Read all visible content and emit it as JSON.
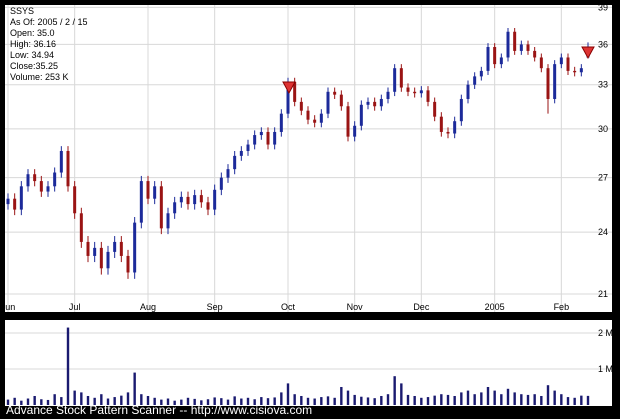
{
  "info": [
    "SSYS",
    "As Of: 2005 / 2 / 15",
    "Open: 35.0",
    "High: 36.16",
    "Low: 34.94",
    "Close:35.25",
    "Volume: 253 K"
  ],
  "footer": "Advance Stock Pattern Scanner -- http://www.cisiova.com",
  "chart_data": [
    {
      "type": "ohlc",
      "log_scale": true,
      "grid": true,
      "up_color": "#1c2a9a",
      "down_color": "#9a1414",
      "categories": [
        "Jun",
        null,
        null,
        null,
        null,
        null,
        null,
        null,
        null,
        null,
        "Jul",
        null,
        null,
        null,
        null,
        null,
        null,
        null,
        null,
        null,
        null,
        "Aug",
        null,
        null,
        null,
        null,
        null,
        null,
        null,
        null,
        null,
        "Sep",
        null,
        null,
        null,
        null,
        null,
        null,
        null,
        null,
        null,
        null,
        "Oct",
        null,
        null,
        null,
        null,
        null,
        null,
        null,
        null,
        null,
        "Nov",
        null,
        null,
        null,
        null,
        null,
        null,
        null,
        null,
        null,
        "Dec",
        null,
        null,
        null,
        null,
        null,
        null,
        null,
        null,
        null,
        null,
        "2005",
        null,
        null,
        null,
        null,
        null,
        null,
        null,
        null,
        null,
        "Feb",
        null,
        null,
        null,
        null
      ],
      "open": [
        25.5,
        25.8,
        25.2,
        26.5,
        27.2,
        26.8,
        26.2,
        26.5,
        27.3,
        28.6,
        26.5,
        25.0,
        23.5,
        22.8,
        23.2,
        22.2,
        23.0,
        23.5,
        22.8,
        22.0,
        24.5,
        26.8,
        25.8,
        26.5,
        24.2,
        25.0,
        25.6,
        25.9,
        25.5,
        26.0,
        25.6,
        25.2,
        26.3,
        27.0,
        27.5,
        28.3,
        28.6,
        29.0,
        29.6,
        29.8,
        29.0,
        29.8,
        31.0,
        33.2,
        31.8,
        31.2,
        30.6,
        30.4,
        31.0,
        32.5,
        32.3,
        31.5,
        29.5,
        30.2,
        31.6,
        31.8,
        31.5,
        32.0,
        32.5,
        34.2,
        32.8,
        32.5,
        32.4,
        32.6,
        31.8,
        30.8,
        29.8,
        29.7,
        30.5,
        32.0,
        33.0,
        33.6,
        34.0,
        35.8,
        34.5,
        35.0,
        37.0,
        35.5,
        36.0,
        35.5,
        35.0,
        34.2,
        32.0,
        34.5,
        35.0,
        34.0,
        33.9,
        35.0
      ],
      "high": [
        26.1,
        26.1,
        26.8,
        27.5,
        27.5,
        27.1,
        26.8,
        27.6,
        28.9,
        28.9,
        26.8,
        25.3,
        23.8,
        23.5,
        23.5,
        23.3,
        23.8,
        23.8,
        23.1,
        24.8,
        27.1,
        27.1,
        26.8,
        26.8,
        25.3,
        25.9,
        26.2,
        26.2,
        26.3,
        26.3,
        25.9,
        26.6,
        27.3,
        27.8,
        28.6,
        28.9,
        29.3,
        29.9,
        30.1,
        30.1,
        30.1,
        31.3,
        33.5,
        33.5,
        32.1,
        31.5,
        30.9,
        31.3,
        32.8,
        32.8,
        32.6,
        31.8,
        30.5,
        31.9,
        32.1,
        32.1,
        32.3,
        32.8,
        34.5,
        34.5,
        33.1,
        32.8,
        32.9,
        32.9,
        32.1,
        31.1,
        30.1,
        30.8,
        32.3,
        33.3,
        33.9,
        34.3,
        36.1,
        36.1,
        35.3,
        37.3,
        37.3,
        36.3,
        36.3,
        35.8,
        35.3,
        34.5,
        34.8,
        35.3,
        35.3,
        34.3,
        34.5,
        36.16
      ],
      "low": [
        25.2,
        24.9,
        24.9,
        26.2,
        26.5,
        25.9,
        25.9,
        26.2,
        27.0,
        26.2,
        24.7,
        23.2,
        22.5,
        22.5,
        21.9,
        21.9,
        22.7,
        22.5,
        21.7,
        21.7,
        24.2,
        25.5,
        25.5,
        23.9,
        23.9,
        24.7,
        25.3,
        25.2,
        25.2,
        25.3,
        24.9,
        24.9,
        26.0,
        26.7,
        27.2,
        28.0,
        28.3,
        28.7,
        29.3,
        28.7,
        28.7,
        29.5,
        30.7,
        31.5,
        30.9,
        30.3,
        30.1,
        30.1,
        30.7,
        32.0,
        31.2,
        29.2,
        29.2,
        29.9,
        31.3,
        31.2,
        31.2,
        31.7,
        32.2,
        32.5,
        32.2,
        32.1,
        32.1,
        31.5,
        30.5,
        29.5,
        29.4,
        29.4,
        30.2,
        31.7,
        32.7,
        33.3,
        33.7,
        34.2,
        34.2,
        34.7,
        35.2,
        35.2,
        35.2,
        34.7,
        33.9,
        31.0,
        31.7,
        34.2,
        33.7,
        33.6,
        33.6,
        34.94
      ],
      "close": [
        25.8,
        25.2,
        26.5,
        27.2,
        26.8,
        26.2,
        26.5,
        27.3,
        28.6,
        26.5,
        25.0,
        23.5,
        22.8,
        23.2,
        22.2,
        23.0,
        23.5,
        22.8,
        22.0,
        24.5,
        26.8,
        25.8,
        26.5,
        24.2,
        25.0,
        25.6,
        25.9,
        25.5,
        26.0,
        25.6,
        25.2,
        26.3,
        27.0,
        27.5,
        28.3,
        28.6,
        29.0,
        29.6,
        29.8,
        29.0,
        29.8,
        31.0,
        33.2,
        31.8,
        31.2,
        30.6,
        30.4,
        31.0,
        32.5,
        32.3,
        31.5,
        29.5,
        30.2,
        31.6,
        31.8,
        31.5,
        32.0,
        32.5,
        34.2,
        32.8,
        32.5,
        32.4,
        32.6,
        31.8,
        30.8,
        29.8,
        29.7,
        30.5,
        32.0,
        33.0,
        33.6,
        34.0,
        35.8,
        34.5,
        35.0,
        37.0,
        35.5,
        36.0,
        35.5,
        35.0,
        34.2,
        32.0,
        34.5,
        35.0,
        34.0,
        33.9,
        34.2,
        35.25
      ],
      "ylim": [
        20.2,
        39.2
      ],
      "yticks": [
        21,
        24,
        27,
        30,
        33,
        36,
        39
      ]
    },
    {
      "type": "bar",
      "color": "#1a1a70",
      "grid": true,
      "values": [
        150000,
        200000,
        120000,
        180000,
        250000,
        160000,
        140000,
        300000,
        220000,
        2150000,
        400000,
        350000,
        250000,
        200000,
        300000,
        180000,
        220000,
        260000,
        350000,
        900000,
        300000,
        250000,
        200000,
        150000,
        180000,
        120000,
        150000,
        200000,
        170000,
        130000,
        160000,
        210000,
        190000,
        150000,
        240000,
        180000,
        200000,
        160000,
        220000,
        190000,
        210000,
        350000,
        600000,
        300000,
        250000,
        200000,
        180000,
        220000,
        240000,
        200000,
        500000,
        400000,
        280000,
        230000,
        210000,
        190000,
        250000,
        300000,
        800000,
        600000,
        280000,
        250000,
        200000,
        220000,
        260000,
        300000,
        280000,
        250000,
        350000,
        400000,
        300000,
        350000,
        500000,
        400000,
        300000,
        450000,
        350000,
        300000,
        280000,
        300000,
        250000,
        550000,
        400000,
        300000,
        220000,
        200000,
        260000,
        253000
      ],
      "ylim": [
        0,
        2360000
      ],
      "yticks": [
        {
          "value": 1000000,
          "label": "1 M"
        },
        {
          "value": 2000000,
          "label": "2 M"
        }
      ]
    }
  ]
}
